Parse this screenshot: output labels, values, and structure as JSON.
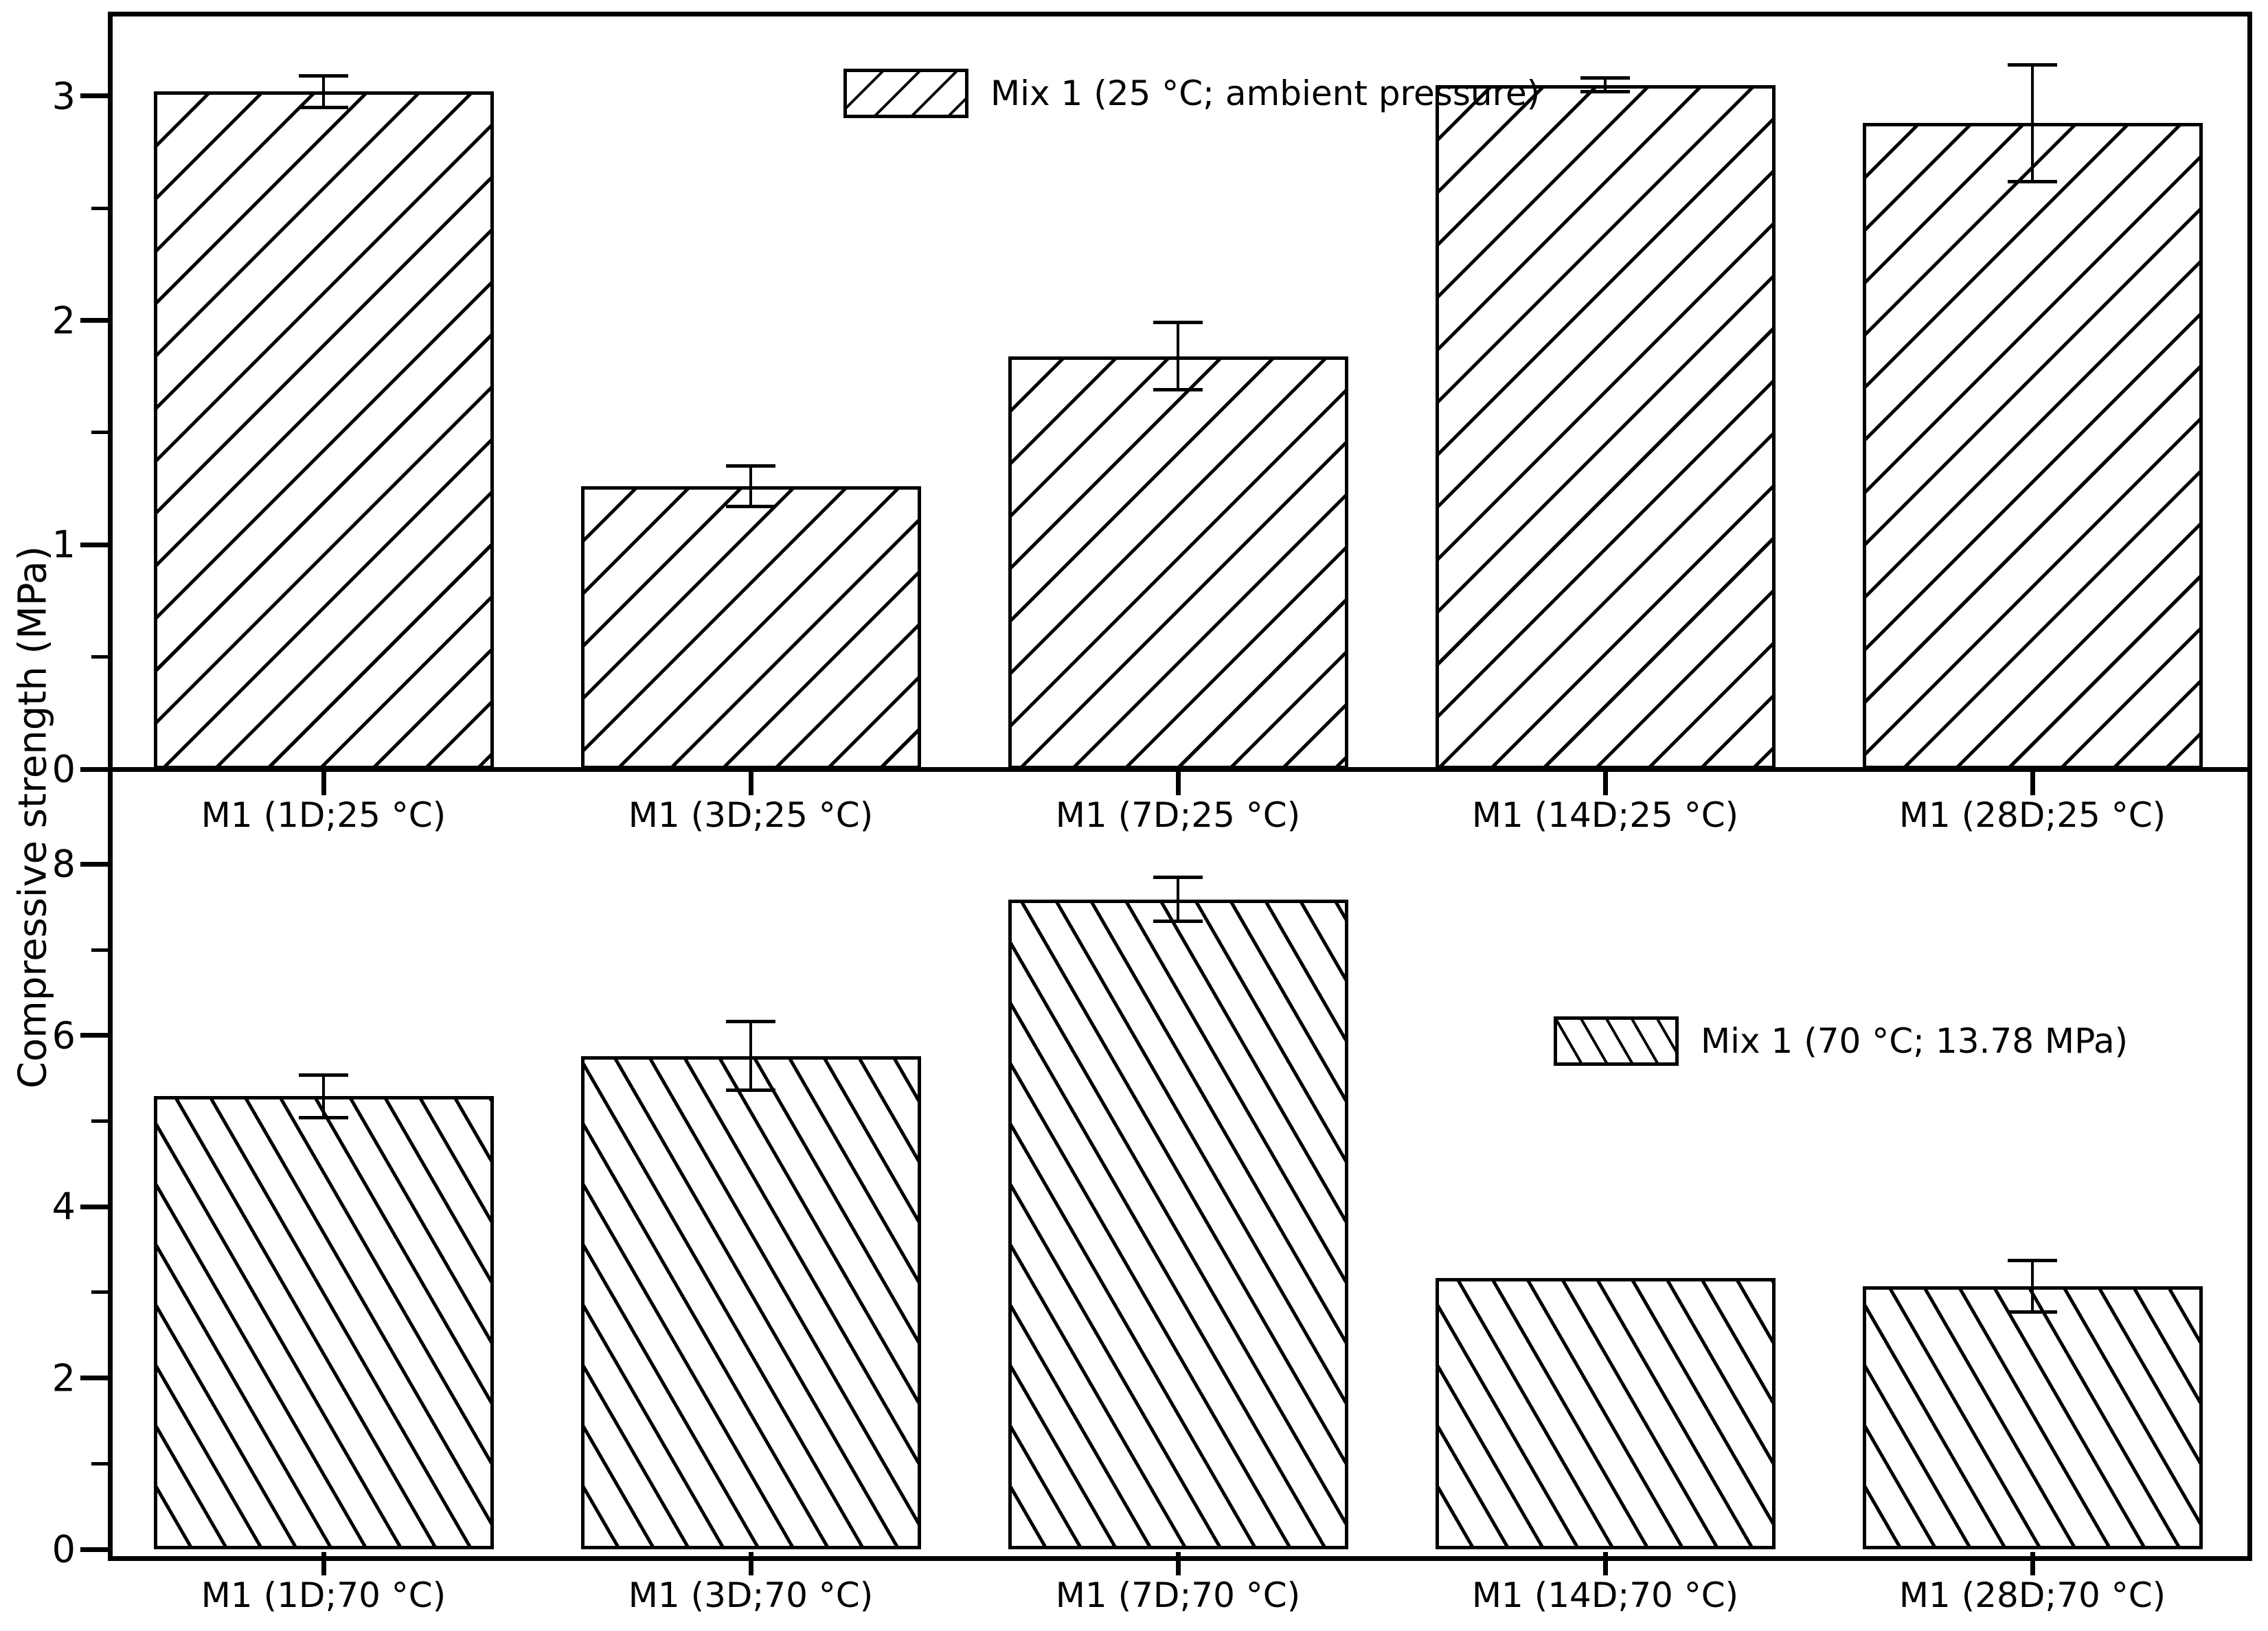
{
  "figure": {
    "background": "#ffffff",
    "ink": "#000000"
  },
  "ylabel": "Compressive strength (MPa)",
  "chart_data": [
    {
      "type": "bar",
      "panel": "top",
      "legend": "Mix 1 (25 °C; ambient pressure)",
      "legend_position": "top-center",
      "hatch": "forward-slash",
      "categories": [
        "M1 (1D;25 °C)",
        "M1 (3D;25 °C)",
        "M1 (7D;25 °C)",
        "M1 (14D;25 °C)",
        "M1 (28D;25 °C)"
      ],
      "values": [
        3.02,
        1.26,
        1.84,
        3.05,
        2.88
      ],
      "errors": [
        0.07,
        0.09,
        0.15,
        0.03,
        0.26
      ],
      "xlabel": "",
      "ylim": [
        0,
        3.37
      ],
      "yticks_major": [
        0,
        1,
        2,
        3
      ],
      "yticks_minor": [
        0.5,
        1.5,
        2.5
      ],
      "grid": false
    },
    {
      "type": "bar",
      "panel": "bottom",
      "legend": "Mix 1 (70 °C; 13.78 MPa)",
      "legend_position": "middle-right",
      "hatch": "back-slash",
      "categories": [
        "M1 (1D;70 °C)",
        "M1 (3D;70 °C)",
        "M1 (7D;70 °C)",
        "M1 (14D;70 °C)",
        "M1 (28D;70 °C)"
      ],
      "values": [
        5.29,
        5.76,
        7.59,
        3.17,
        3.07
      ],
      "errors": [
        0.25,
        0.4,
        0.26,
        0,
        0.3
      ],
      "xlabel": "",
      "ylim": [
        0,
        9.11
      ],
      "yticks_major": [
        0,
        2,
        4,
        6,
        8
      ],
      "yticks_minor": [
        1,
        3,
        5,
        7
      ],
      "grid": false
    }
  ]
}
